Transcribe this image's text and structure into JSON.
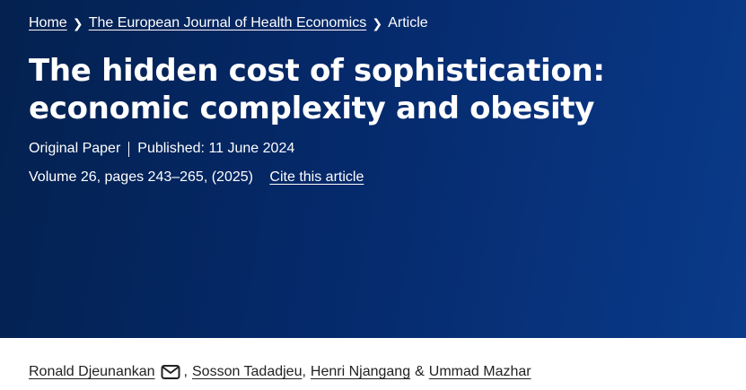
{
  "breadcrumb": {
    "home": "Home",
    "journal": "The European Journal of Health Economics",
    "current": "Article"
  },
  "article": {
    "title": "The hidden cost of sophistication: economic complexity and obesity",
    "type": "Original Paper",
    "published": "Published: 11 June 2024",
    "volume": "Volume 26, pages 243–265, (2025)",
    "cite_label": "Cite this article"
  },
  "authors": {
    "list": [
      "Ronald Djeunankan",
      "Sosson Tadadjeu",
      "Henri Njangang",
      "Ummad Mazhar"
    ],
    "separator": ",",
    "final_separator": "&",
    "icon": "envelope-icon"
  },
  "colors": {
    "hero_dark": "#04214f",
    "hero_light": "#0a3a8a"
  }
}
